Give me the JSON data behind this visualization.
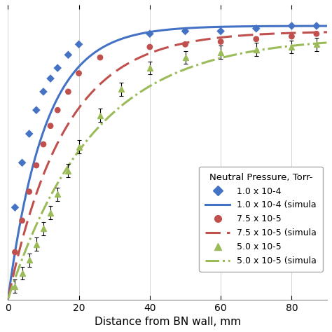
{
  "xlabel": "Distance from BN wall, mm",
  "xlim": [
    0,
    90
  ],
  "ylim": [
    0,
    1.12
  ],
  "xticks": [
    0,
    20,
    40,
    60,
    80
  ],
  "legend_title": "Neutral Pressure, Torr-",
  "legend_entries": [
    "1.0 x 10-4",
    "1.0 x 10-4 (simula",
    "7.5 x 10-5",
    "7.5 x 10-5 (simula",
    "5.0 x 10-5",
    "5.0 x 10-5 (simula"
  ],
  "blue_color": "#4472C4",
  "red_color": "#C0504D",
  "green_color": "#9BBB59",
  "blue_sim_scale": 1.04,
  "blue_sim_tau": 10.5,
  "red_sim_scale": 1.02,
  "red_sim_tau": 16.0,
  "green_sim_scale": 1.0,
  "green_sim_tau": 24.0,
  "blue_data_x": [
    2,
    4,
    6,
    8,
    10,
    12,
    14,
    17,
    20,
    40,
    50,
    60,
    70,
    80,
    87
  ],
  "blue_data_y": [
    0.35,
    0.52,
    0.63,
    0.72,
    0.79,
    0.84,
    0.88,
    0.93,
    0.97,
    1.01,
    1.02,
    1.02,
    1.03,
    1.04,
    1.04
  ],
  "red_data_x": [
    2,
    4,
    6,
    8,
    10,
    12,
    14,
    17,
    20,
    26,
    40,
    50,
    60,
    70,
    80,
    87
  ],
  "red_data_y": [
    0.18,
    0.3,
    0.41,
    0.51,
    0.59,
    0.66,
    0.72,
    0.79,
    0.86,
    0.92,
    0.96,
    0.97,
    0.98,
    0.99,
    1.0,
    1.01
  ],
  "green_data_x": [
    2,
    4,
    6,
    8,
    10,
    12,
    14,
    17,
    20,
    26,
    32,
    40,
    50,
    60,
    70,
    80,
    87
  ],
  "green_data_y": [
    0.05,
    0.1,
    0.15,
    0.21,
    0.27,
    0.33,
    0.4,
    0.49,
    0.58,
    0.7,
    0.8,
    0.88,
    0.92,
    0.94,
    0.95,
    0.96,
    0.97
  ],
  "green_yerr": 0.025,
  "background_color": "#FFFFFF",
  "grid_color": "#CCCCCC"
}
